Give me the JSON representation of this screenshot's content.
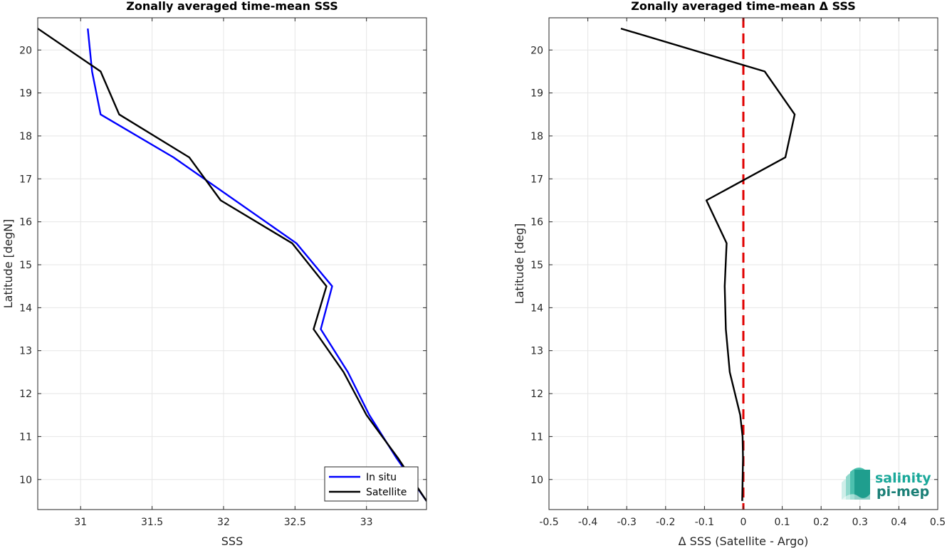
{
  "chart_data": [
    {
      "type": "line",
      "title": "Zonally averaged time-mean SSS",
      "xlabel": "SSS",
      "ylabel": "Latitude [degN]",
      "xlim": [
        30.7,
        33.42
      ],
      "ylim": [
        9.3,
        20.75
      ],
      "xticks": [
        31,
        31.5,
        32,
        32.5,
        33
      ],
      "xtick_labels": [
        "31",
        "31.5",
        "32",
        "32.5",
        "33"
      ],
      "yticks": [
        10,
        11,
        12,
        13,
        14,
        15,
        16,
        17,
        18,
        19,
        20
      ],
      "ytick_labels": [
        "10",
        "11",
        "12",
        "13",
        "14",
        "15",
        "16",
        "17",
        "18",
        "19",
        "20"
      ],
      "grid": true,
      "legend": "bottom-right",
      "series": [
        {
          "name": "In situ",
          "color": "#0000ff",
          "x": [
            31.05,
            31.08,
            31.14,
            31.65,
            32.51,
            32.76,
            32.68,
            32.87,
            33.02,
            33.21,
            33.42
          ],
          "y": [
            20.5,
            19.5,
            18.5,
            17.5,
            15.5,
            14.5,
            13.5,
            12.5,
            11.5,
            10.5,
            9.5
          ]
        },
        {
          "name": "Satellite",
          "color": "#000000",
          "x": [
            30.7,
            31.14,
            31.27,
            31.76,
            31.98,
            32.48,
            32.72,
            32.63,
            32.84,
            33.0,
            33.22,
            33.42
          ],
          "y": [
            20.5,
            19.5,
            18.5,
            17.5,
            16.5,
            15.5,
            14.5,
            13.5,
            12.5,
            11.5,
            10.5,
            9.5
          ]
        }
      ]
    },
    {
      "type": "line",
      "title": "Zonally averaged time-mean Δ SSS",
      "xlabel": "Δ SSS (Satellite - Argo)",
      "ylabel": "Latitude [deg]",
      "xlim": [
        -0.5,
        0.5
      ],
      "ylim": [
        9.3,
        20.75
      ],
      "xticks": [
        -0.5,
        -0.4,
        -0.3,
        -0.2,
        -0.1,
        0,
        0.1,
        0.2,
        0.3,
        0.4,
        0.5
      ],
      "xtick_labels": [
        "-0.5",
        "-0.4",
        "-0.3",
        "-0.2",
        "-0.1",
        "0",
        "0.1",
        "0.2",
        "0.3",
        "0.4",
        "0.5"
      ],
      "yticks": [
        10,
        11,
        12,
        13,
        14,
        15,
        16,
        17,
        18,
        19,
        20
      ],
      "ytick_labels": [
        "10",
        "11",
        "12",
        "13",
        "14",
        "15",
        "16",
        "17",
        "18",
        "19",
        "20"
      ],
      "grid": true,
      "reference_line": {
        "x": 0,
        "color": "#e00000",
        "style": "dashed"
      },
      "series": [
        {
          "color": "#000000",
          "x": [
            -0.315,
            0.055,
            0.132,
            0.108,
            -0.095,
            -0.043,
            -0.048,
            -0.045,
            -0.035,
            -0.008,
            -0.002,
            -0.001,
            -0.003
          ],
          "y": [
            20.5,
            19.5,
            18.5,
            17.5,
            16.5,
            15.5,
            14.5,
            13.5,
            12.5,
            11.5,
            11.0,
            10.5,
            9.5
          ]
        }
      ]
    }
  ],
  "logo": {
    "line1": "salinity",
    "line2": "pi-mep",
    "color1": "#1aa89a",
    "color2": "#1a7f76"
  }
}
